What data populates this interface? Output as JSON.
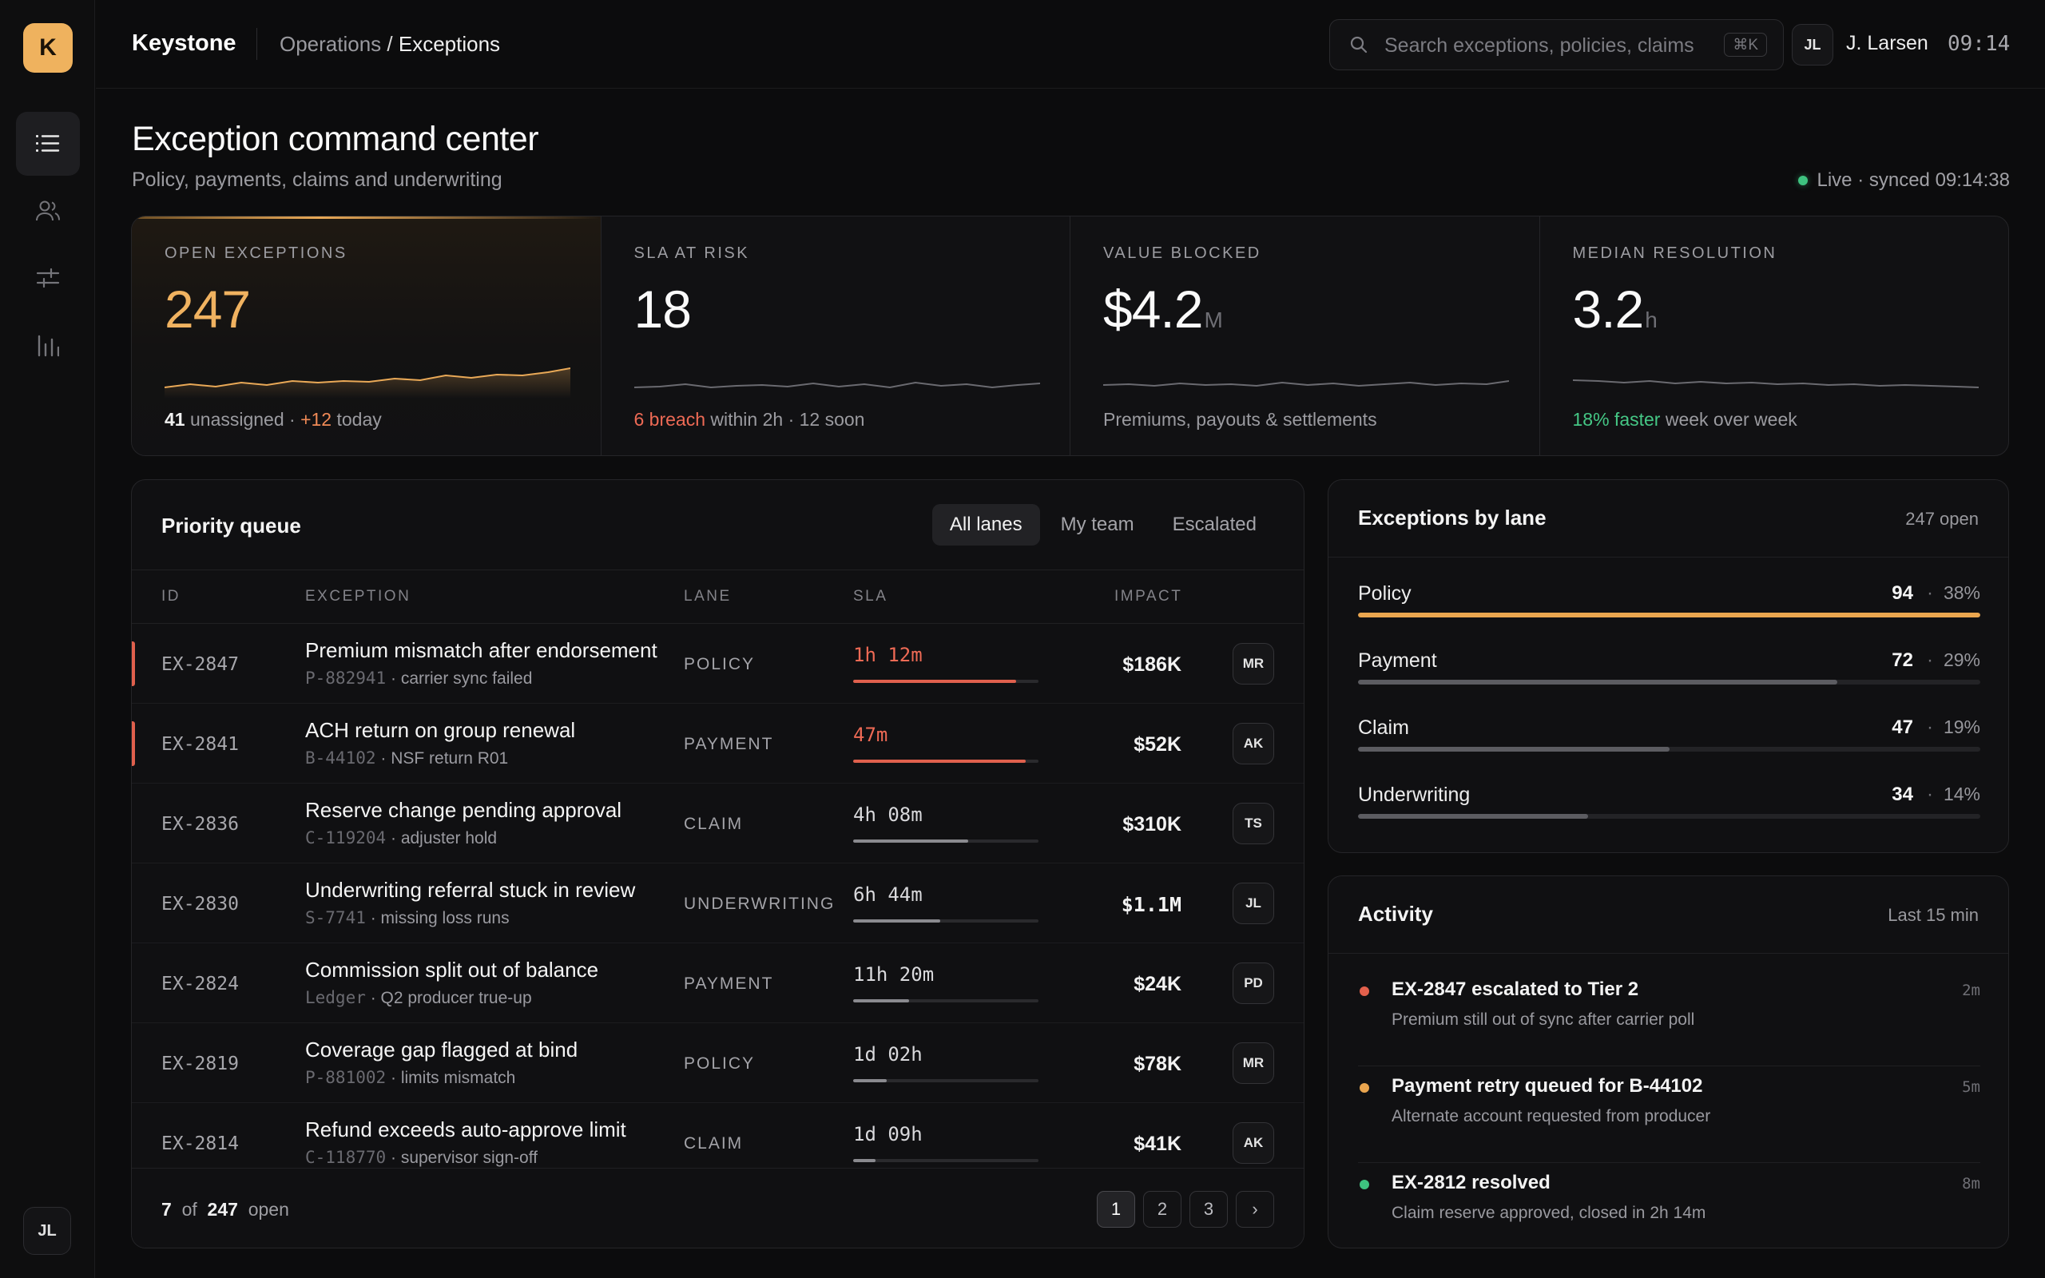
{
  "app": {
    "logo_letter": "K",
    "brand": "Keystone",
    "breadcrumb": {
      "parent": "Operations",
      "separator": " / ",
      "current": "Exceptions"
    },
    "search": {
      "placeholder": "Search exceptions, policies, claims",
      "shortcut": "⌘K"
    },
    "user": {
      "initials": "JL",
      "name": "J. Larsen"
    },
    "clock": "09:14",
    "rail": {
      "items": [
        {
          "icon": "list-icon",
          "active": true
        },
        {
          "icon": "users-icon",
          "active": false
        },
        {
          "icon": "sliders-icon",
          "active": false
        },
        {
          "icon": "bar-chart-icon",
          "active": false
        }
      ],
      "avatar_initials": "JL"
    }
  },
  "page": {
    "title": "Exception command center",
    "subtitle": "Policy, payments, claims and underwriting",
    "live_status": "Live · synced 09:14:38"
  },
  "kpis": [
    {
      "label": "OPEN EXCEPTIONS",
      "value": "247",
      "unit": "",
      "foot_strong": "41",
      "foot_a": " unassigned · ",
      "foot_accent": "+12",
      "foot_b": " today",
      "accent_color": "#f08a56"
    },
    {
      "label": "SLA AT RISK",
      "value": "18",
      "unit": "",
      "foot_strong": "",
      "foot_a": "",
      "foot_accent": "6 breach",
      "foot_b": " within 2h · 12 soon",
      "accent_color": "#ee6a55"
    },
    {
      "label": "VALUE BLOCKED",
      "value": "$4.2",
      "unit": "M",
      "foot_strong": "",
      "foot_a": "Premiums, payouts & settlements",
      "foot_accent": "",
      "foot_b": "",
      "accent_color": ""
    },
    {
      "label": "MEDIAN RESOLUTION",
      "value": "3.2",
      "unit": "h",
      "foot_strong": "",
      "foot_a": "",
      "foot_accent": "18% faster",
      "foot_b": " week over week",
      "accent_color": "#45c785"
    }
  ],
  "queue": {
    "title": "Priority queue",
    "filters": [
      {
        "label": "All lanes",
        "active": true
      },
      {
        "label": "My team",
        "active": false
      },
      {
        "label": "Escalated",
        "active": false
      }
    ],
    "columns": {
      "id": "ID",
      "exception": "EXCEPTION",
      "lane": "LANE",
      "sla": "SLA",
      "impact": "IMPACT"
    },
    "rows": [
      {
        "id": "EX-2847",
        "title": "Premium mismatch after endorsement",
        "ref": "P-882941",
        "detail": "carrier sync failed",
        "lane": "POLICY",
        "sla": "1h 12m",
        "sla_progress": 0.88,
        "breach": true,
        "impact": "$186K",
        "owner": "MR"
      },
      {
        "id": "EX-2841",
        "title": "ACH return on group renewal",
        "ref": "B-44102",
        "detail": "NSF return R01",
        "lane": "PAYMENT",
        "sla": "47m",
        "sla_progress": 0.93,
        "breach": true,
        "impact": "$52K",
        "owner": "AK"
      },
      {
        "id": "EX-2836",
        "title": "Reserve change pending approval",
        "ref": "C-119204",
        "detail": "adjuster hold",
        "lane": "CLAIM",
        "sla": "4h 08m",
        "sla_progress": 0.62,
        "breach": false,
        "impact": "$310K",
        "owner": "TS"
      },
      {
        "id": "EX-2830",
        "title": "Underwriting referral stuck in review",
        "ref": "S-7741",
        "detail": "missing loss runs",
        "lane": "UNDERWRITING",
        "sla": "6h 44m",
        "sla_progress": 0.47,
        "breach": false,
        "impact": "$1.1M",
        "owner": "JL"
      },
      {
        "id": "EX-2824",
        "title": "Commission split out of balance",
        "ref": "Ledger",
        "detail": "Q2 producer true-up",
        "lane": "PAYMENT",
        "sla": "11h 20m",
        "sla_progress": 0.3,
        "breach": false,
        "impact": "$24K",
        "owner": "PD"
      },
      {
        "id": "EX-2819",
        "title": "Coverage gap flagged at bind",
        "ref": "P-881002",
        "detail": "limits mismatch",
        "lane": "POLICY",
        "sla": "1d 02h",
        "sla_progress": 0.18,
        "breach": false,
        "impact": "$78K",
        "owner": "MR"
      },
      {
        "id": "EX-2814",
        "title": "Refund exceeds auto-approve limit",
        "ref": "C-118770",
        "detail": "supervisor sign-off",
        "lane": "CLAIM",
        "sla": "1d 09h",
        "sla_progress": 0.12,
        "breach": false,
        "impact": "$41K",
        "owner": "AK"
      }
    ],
    "footer": {
      "shown": "7",
      "of_label": "of",
      "total": "247",
      "open_label": "open"
    },
    "pages": [
      "1",
      "2",
      "3"
    ],
    "current_page": "1",
    "next_glyph": "›"
  },
  "lanes": {
    "title": "Exceptions by lane",
    "meta": "247 open",
    "items": [
      {
        "name": "Policy",
        "count": "94",
        "pct": "38%",
        "share": 1.0,
        "highlight": true
      },
      {
        "name": "Payment",
        "count": "72",
        "pct": "29%",
        "share": 0.77,
        "highlight": false
      },
      {
        "name": "Claim",
        "count": "47",
        "pct": "19%",
        "share": 0.5,
        "highlight": false
      },
      {
        "name": "Underwriting",
        "count": "34",
        "pct": "14%",
        "share": 0.37,
        "highlight": false
      }
    ]
  },
  "activity": {
    "title": "Activity",
    "meta": "Last 15 min",
    "items": [
      {
        "title": "EX-2847 escalated to Tier 2",
        "sub": "Premium still out of sync after carrier poll",
        "time": "2m",
        "color": "#e3604c"
      },
      {
        "title": "Payment retry queued for B-44102",
        "sub": "Alternate account requested from producer",
        "time": "5m",
        "color": "#e9a54f"
      },
      {
        "title": "EX-2812 resolved",
        "sub": "Claim reserve approved, closed in 2h 14m",
        "time": "8m",
        "color": "#3ec27f"
      }
    ]
  },
  "colors": {
    "accent": "#efb25e",
    "danger": "#ee6a55",
    "success": "#45c785",
    "background": "#0c0c0d"
  }
}
